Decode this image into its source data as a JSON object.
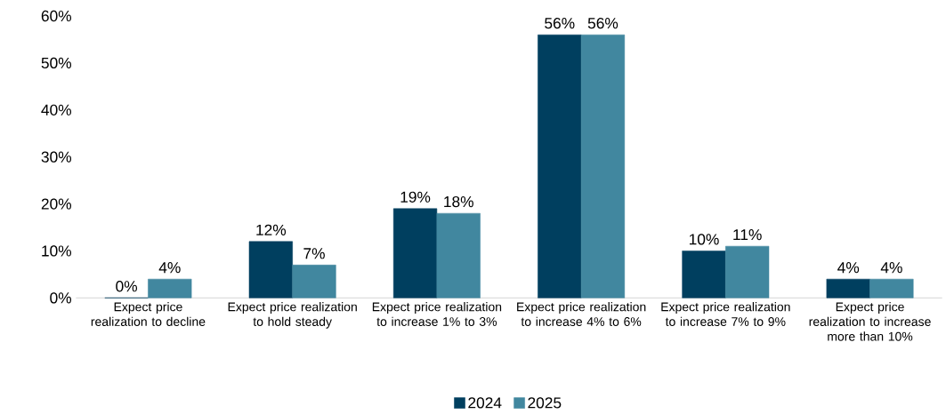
{
  "chart_data": {
    "type": "bar",
    "categories": [
      "Expect price realization to decline",
      "Expect price realization to hold steady",
      "Expect price realization to increase 1% to 3%",
      "Expect price realization to increase 4% to 6%",
      "Expect price realization to increase 7% to 9%",
      "Expect price realization to increase more than 10%"
    ],
    "series": [
      {
        "name": "2024",
        "color": "#003f5f",
        "values": [
          0,
          12,
          19,
          56,
          10,
          4
        ],
        "value_labels": [
          "0%",
          "12%",
          "19%",
          "56%",
          "10%",
          "4%"
        ]
      },
      {
        "name": "2025",
        "color": "#41879f",
        "values": [
          4,
          7,
          18,
          56,
          11,
          4
        ],
        "value_labels": [
          "4%",
          "7%",
          "18%",
          "56%",
          "11%",
          "4%"
        ]
      }
    ],
    "ylim": [
      0,
      60
    ],
    "yticks": [
      {
        "value": 0,
        "label": "0%"
      },
      {
        "value": 10,
        "label": "10%"
      },
      {
        "value": 20,
        "label": "20%"
      },
      {
        "value": 30,
        "label": "30%"
      },
      {
        "value": 40,
        "label": "40%"
      },
      {
        "value": 50,
        "label": "50%"
      },
      {
        "value": 60,
        "label": "60%"
      }
    ],
    "legend": "bottom"
  }
}
